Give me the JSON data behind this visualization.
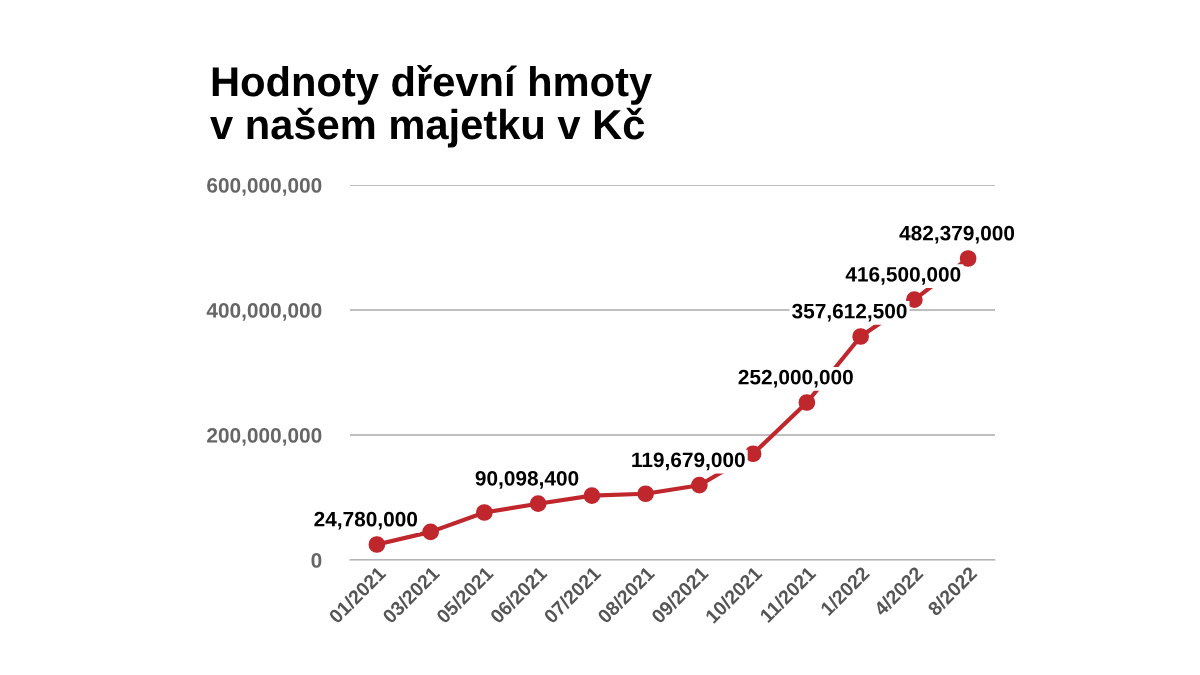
{
  "chart_data": {
    "type": "line",
    "title": "Hodnoty dřevní hmoty\nv našem majetku v Kč",
    "categories": [
      "01/2021",
      "03/2021",
      "05/2021",
      "06/2021",
      "07/2021",
      "08/2021",
      "09/2021",
      "10/2021",
      "11/2021",
      "1/2022",
      "4/2022",
      "8/2022"
    ],
    "series": [
      {
        "color": "#c0272d",
        "values": [
          24780000,
          45000000,
          76000000,
          90098400,
          103000000,
          106000000,
          119679000,
          170000000,
          252000000,
          357612500,
          416500000,
          482379000
        ],
        "value_labels": [
          "24,780,000",
          null,
          null,
          "90,098,400",
          null,
          null,
          "119,679,000",
          null,
          "252,000,000",
          "357,612,500",
          "416,500,000",
          "482,379,000"
        ]
      }
    ],
    "ylim": [
      0,
      600000000
    ],
    "yticks": [
      {
        "value": 0,
        "label": "0"
      },
      {
        "value": 200000000,
        "label": "200,000,000"
      },
      {
        "value": 400000000,
        "label": "400,000,000"
      },
      {
        "value": 600000000,
        "label": "600,000,000"
      }
    ],
    "grid": "y",
    "marker": "circle",
    "line_style": "solid",
    "legend": false
  }
}
